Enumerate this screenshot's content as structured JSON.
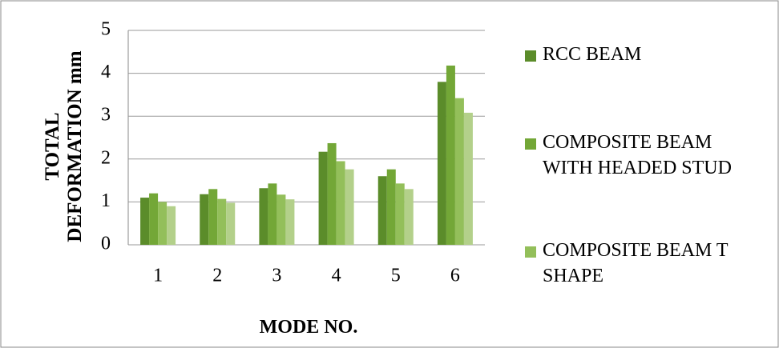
{
  "chart_data": {
    "type": "bar",
    "x_label": "MODE NO.",
    "y_label": "TOTAL DEFORMATION mm",
    "categories": [
      "1",
      "2",
      "3",
      "4",
      "5",
      "6"
    ],
    "series": [
      {
        "name": "RCC BEAM",
        "color": "#5b8c2a",
        "values": [
          1.1,
          1.18,
          1.32,
          2.17,
          1.6,
          3.8
        ]
      },
      {
        "name": "COMPOSITE BEAM WITH HEADED STUD",
        "color": "#73a737",
        "values": [
          1.2,
          1.3,
          1.43,
          2.37,
          1.76,
          4.18
        ]
      },
      {
        "name": "COMPOSITE BEAM T SHAPE",
        "color": "#93bf5a",
        "values": [
          1.0,
          1.07,
          1.17,
          1.95,
          1.43,
          3.42
        ]
      },
      {
        "color": "#b3d08a",
        "values": [
          0.9,
          0.98,
          1.06,
          1.76,
          1.3,
          3.08
        ]
      }
    ],
    "ylim": [
      0,
      5
    ],
    "yticks": [
      0,
      1,
      2,
      3,
      4,
      5
    ],
    "grid": true
  }
}
